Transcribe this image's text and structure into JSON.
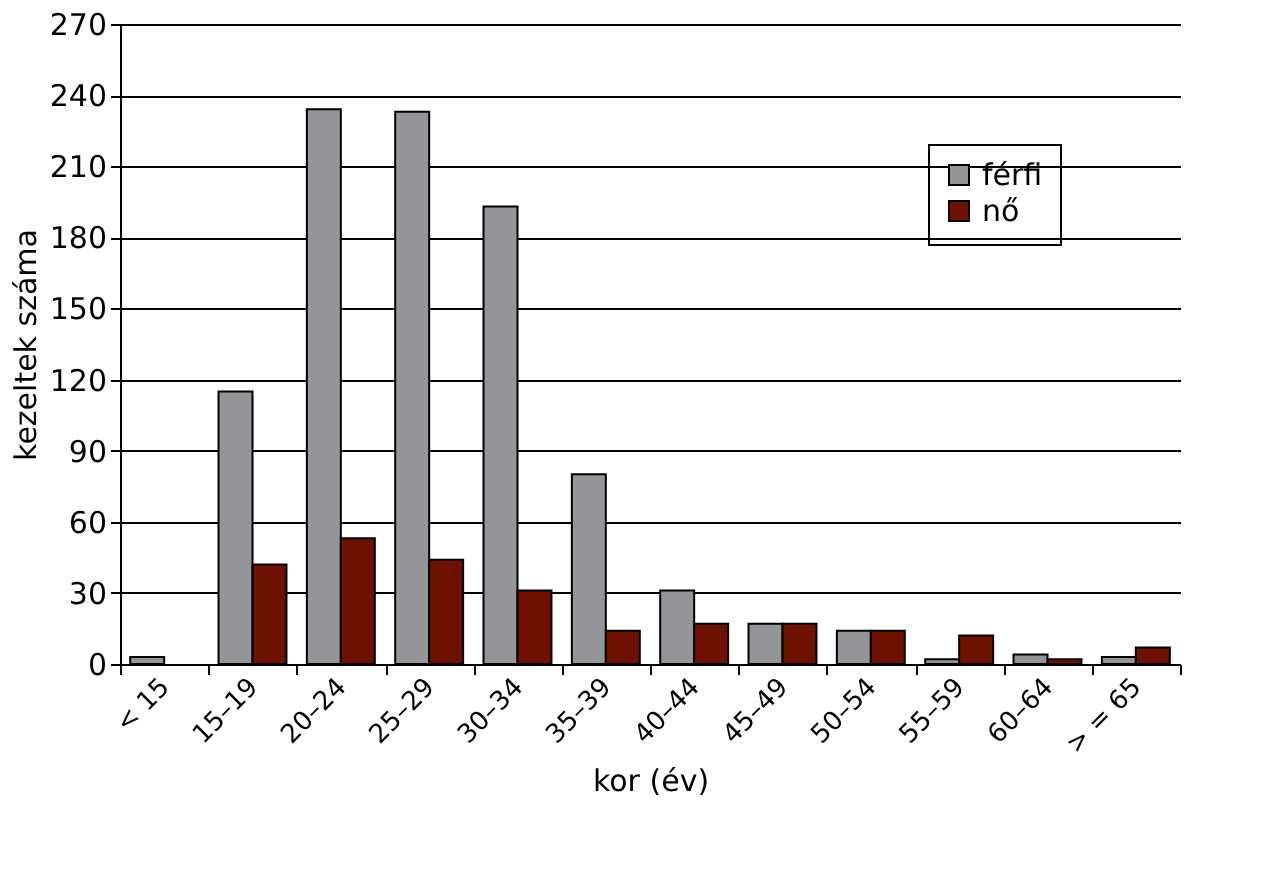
{
  "chart_data": {
    "type": "bar",
    "xlabel": "kor (év)",
    "ylabel": "kezeltek száma",
    "categories": [
      "< 15",
      "15–19",
      "20–24",
      "25–29",
      "30–34",
      "35–39",
      "40–44",
      "45–49",
      "50–54",
      "55–59",
      "60–64",
      "> = 65"
    ],
    "series": [
      {
        "name": "férfi",
        "color": "#939598",
        "values": [
          3,
          115,
          234,
          233,
          193,
          80,
          31,
          17,
          14,
          2,
          4,
          3
        ]
      },
      {
        "name": "nő",
        "color": "#6e1100",
        "values": [
          null,
          42,
          53,
          44,
          31,
          14,
          17,
          17,
          14,
          12,
          2,
          7
        ]
      }
    ],
    "ylim": [
      0,
      270
    ],
    "yticks": [
      0,
      30,
      60,
      90,
      120,
      150,
      180,
      210,
      240,
      270
    ],
    "grid": "y",
    "legend": "top right"
  }
}
